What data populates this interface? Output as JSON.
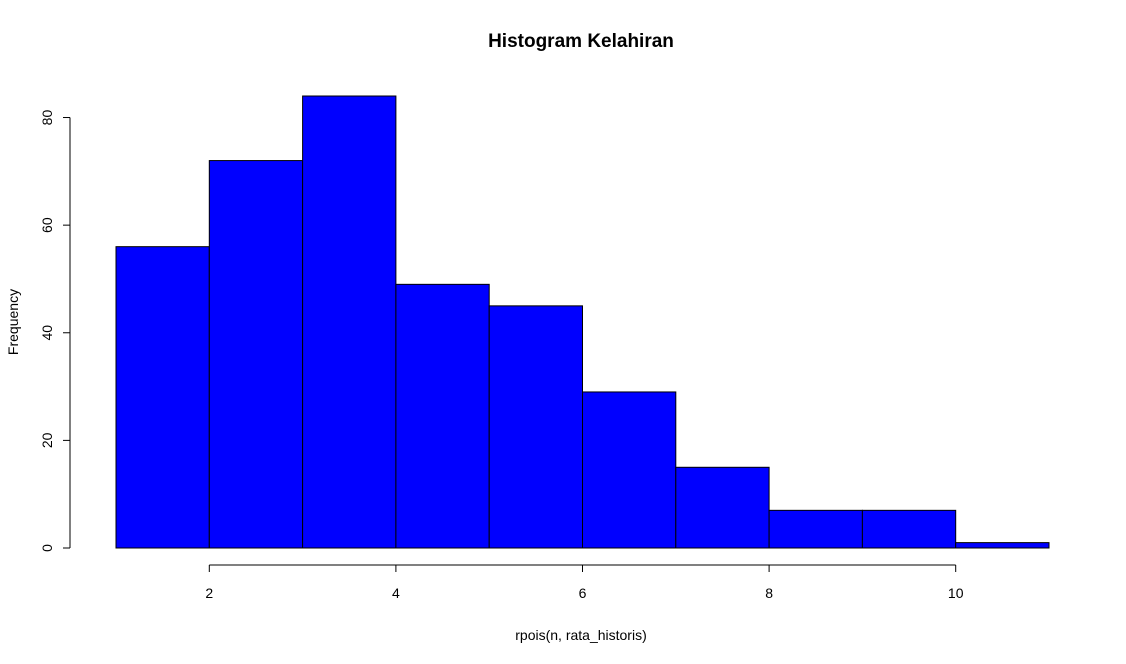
{
  "chart_data": {
    "type": "bar",
    "title": "Histogram Kelahiran",
    "xlabel": "rpois(n, rata_historis)",
    "ylabel": "Frequency",
    "bin_edges": [
      1,
      2,
      3,
      4,
      5,
      6,
      7,
      8,
      9,
      10,
      11
    ],
    "values": [
      56,
      72,
      84,
      49,
      45,
      29,
      15,
      7,
      7,
      1
    ],
    "xlim": [
      1,
      11
    ],
    "ylim": [
      0,
      84
    ],
    "x_ticks": [
      2,
      4,
      6,
      8,
      10
    ],
    "x_tick_labels": [
      "2",
      "4",
      "6",
      "8",
      "10"
    ],
    "y_ticks": [
      0,
      20,
      40,
      60,
      80
    ],
    "y_tick_labels": [
      "0",
      "20",
      "40",
      "60",
      "80"
    ],
    "bar_color": "#0000ff",
    "grid": false,
    "legend": "none"
  }
}
